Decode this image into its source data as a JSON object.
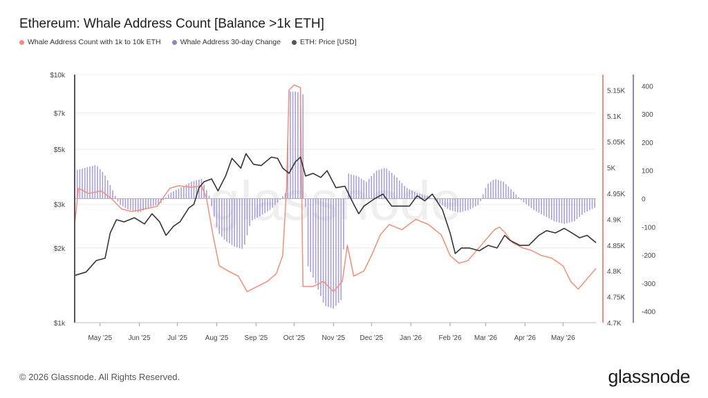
{
  "title": "Ethereum: Whale Address Count [Balance >1k ETH]",
  "legend": [
    {
      "label": "Whale Address Count with 1k to 10k ETH",
      "color": "#f28e7a"
    },
    {
      "label": "Whale Address 30-day Change",
      "color": "#8f85c2"
    },
    {
      "label": "ETH: Price [USD]",
      "color": "#555555"
    }
  ],
  "footer": "© 2026 Glassnode. All Rights Reserved.",
  "logo": "glassnode",
  "watermark": "glassnode",
  "colors": {
    "count": "#f28e7a",
    "change": "#9a8fd0",
    "price": "#333333",
    "count_axis": "#f28e7a",
    "change_axis": "#8f85c2"
  },
  "chart_data": {
    "type": "line",
    "x_ticks": [
      "May '25",
      "Jun '25",
      "Jul '25",
      "Aug '25",
      "Sep '25",
      "Oct '25",
      "Nov '25",
      "Dec '25",
      "Jan '26",
      "Feb '26",
      "Mar '26",
      "Apr '26",
      "May '26"
    ],
    "x_range": [
      "2025-04-11",
      "2026-05-27"
    ],
    "y_left": {
      "label_ticks": [
        "$1k",
        "$2k",
        "$3k",
        "$5k",
        "$7k",
        "$10k"
      ],
      "tick_values": [
        1000,
        2000,
        3000,
        5000,
        7000,
        10000
      ],
      "scale": "log",
      "range": [
        1000,
        10000
      ]
    },
    "y_right_count": {
      "label_ticks": [
        "4.7K",
        "4.75K",
        "4.8K",
        "4.85K",
        "4.9K",
        "4.95K",
        "5K",
        "5.05K",
        "5.1K",
        "5.15K"
      ],
      "tick_values": [
        4700,
        4750,
        4800,
        4850,
        4900,
        4950,
        5000,
        5050,
        5100,
        5150
      ],
      "range": [
        4700,
        5180
      ]
    },
    "y_right_change": {
      "label_ticks": [
        "-400",
        "-300",
        "-200",
        "-100",
        "0",
        "100",
        "200",
        "300",
        "400"
      ],
      "tick_values": [
        -400,
        -300,
        -200,
        -100,
        0,
        100,
        200,
        300,
        400
      ],
      "range": [
        -440,
        440
      ]
    },
    "series": [
      {
        "name": "ETH: Price [USD]",
        "axis": "left",
        "points": [
          [
            "2025-04-11",
            1550
          ],
          [
            "2025-04-20",
            1600
          ],
          [
            "2025-04-28",
            1780
          ],
          [
            "2025-05-05",
            1820
          ],
          [
            "2025-05-09",
            2300
          ],
          [
            "2025-05-14",
            2600
          ],
          [
            "2025-05-20",
            2550
          ],
          [
            "2025-05-28",
            2650
          ],
          [
            "2025-06-05",
            2500
          ],
          [
            "2025-06-11",
            2750
          ],
          [
            "2025-06-17",
            2550
          ],
          [
            "2025-06-22",
            2250
          ],
          [
            "2025-06-28",
            2450
          ],
          [
            "2025-07-03",
            2550
          ],
          [
            "2025-07-10",
            2900
          ],
          [
            "2025-07-14",
            3000
          ],
          [
            "2025-07-18",
            3500
          ],
          [
            "2025-07-22",
            3700
          ],
          [
            "2025-07-28",
            3800
          ],
          [
            "2025-08-02",
            3400
          ],
          [
            "2025-08-08",
            3900
          ],
          [
            "2025-08-13",
            4600
          ],
          [
            "2025-08-20",
            4200
          ],
          [
            "2025-08-24",
            4800
          ],
          [
            "2025-08-30",
            4350
          ],
          [
            "2025-09-05",
            4300
          ],
          [
            "2025-09-13",
            4650
          ],
          [
            "2025-09-18",
            4600
          ],
          [
            "2025-09-22",
            4200
          ],
          [
            "2025-09-27",
            4000
          ],
          [
            "2025-10-02",
            4450
          ],
          [
            "2025-10-06",
            4650
          ],
          [
            "2025-10-10",
            3900
          ],
          [
            "2025-10-16",
            4000
          ],
          [
            "2025-10-22",
            3850
          ],
          [
            "2025-10-27",
            4100
          ],
          [
            "2025-11-03",
            3500
          ],
          [
            "2025-11-10",
            3550
          ],
          [
            "2025-11-17",
            3000
          ],
          [
            "2025-11-21",
            2750
          ],
          [
            "2025-11-25",
            2950
          ],
          [
            "2025-12-03",
            3150
          ],
          [
            "2025-12-10",
            3300
          ],
          [
            "2025-12-17",
            2950
          ],
          [
            "2025-12-24",
            2950
          ],
          [
            "2025-12-31",
            2950
          ],
          [
            "2026-01-06",
            3250
          ],
          [
            "2026-01-12",
            3100
          ],
          [
            "2026-01-18",
            3300
          ],
          [
            "2026-01-26",
            2850
          ],
          [
            "2026-02-01",
            2300
          ],
          [
            "2026-02-05",
            1900
          ],
          [
            "2026-02-10",
            2000
          ],
          [
            "2026-02-16",
            2000
          ],
          [
            "2026-02-24",
            1950
          ],
          [
            "2026-03-03",
            2050
          ],
          [
            "2026-03-10",
            2000
          ],
          [
            "2026-03-16",
            2250
          ],
          [
            "2026-03-20",
            2150
          ],
          [
            "2026-03-28",
            2050
          ],
          [
            "2026-04-04",
            2050
          ],
          [
            "2026-04-12",
            2250
          ],
          [
            "2026-04-18",
            2350
          ],
          [
            "2026-04-25",
            2300
          ],
          [
            "2026-05-02",
            2400
          ],
          [
            "2026-05-08",
            2300
          ],
          [
            "2026-05-14",
            2200
          ],
          [
            "2026-05-20",
            2250
          ],
          [
            "2026-05-27",
            2100
          ]
        ]
      },
      {
        "name": "Whale Address Count with 1k to 10k ETH",
        "axis": "right_count",
        "points": [
          [
            "2025-04-11",
            4890
          ],
          [
            "2025-04-14",
            4960
          ],
          [
            "2025-04-22",
            4950
          ],
          [
            "2025-05-02",
            4955
          ],
          [
            "2025-05-10",
            4940
          ],
          [
            "2025-05-18",
            4920
          ],
          [
            "2025-05-26",
            4915
          ],
          [
            "2025-06-05",
            4920
          ],
          [
            "2025-06-15",
            4925
          ],
          [
            "2025-06-25",
            4960
          ],
          [
            "2025-07-02",
            4965
          ],
          [
            "2025-07-12",
            4962
          ],
          [
            "2025-07-20",
            4965
          ],
          [
            "2025-07-24",
            4940
          ],
          [
            "2025-07-29",
            4870
          ],
          [
            "2025-08-03",
            4810
          ],
          [
            "2025-08-10",
            4800
          ],
          [
            "2025-08-18",
            4790
          ],
          [
            "2025-08-25",
            4760
          ],
          [
            "2025-09-02",
            4770
          ],
          [
            "2025-09-10",
            4780
          ],
          [
            "2025-09-17",
            4795
          ],
          [
            "2025-09-22",
            4830
          ],
          [
            "2025-09-25",
            4960
          ],
          [
            "2025-09-27",
            5150
          ],
          [
            "2025-10-01",
            5160
          ],
          [
            "2025-10-06",
            5155
          ],
          [
            "2025-10-08",
            4770
          ],
          [
            "2025-10-16",
            4770
          ],
          [
            "2025-10-24",
            4780
          ],
          [
            "2025-11-01",
            4760
          ],
          [
            "2025-11-08",
            4780
          ],
          [
            "2025-11-12",
            4850
          ],
          [
            "2025-11-17",
            4790
          ],
          [
            "2025-11-25",
            4800
          ],
          [
            "2025-12-01",
            4830
          ],
          [
            "2025-12-08",
            4870
          ],
          [
            "2025-12-15",
            4890
          ],
          [
            "2025-12-25",
            4880
          ],
          [
            "2026-01-05",
            4900
          ],
          [
            "2026-01-15",
            4890
          ],
          [
            "2026-01-25",
            4870
          ],
          [
            "2026-02-01",
            4830
          ],
          [
            "2026-02-08",
            4815
          ],
          [
            "2026-02-15",
            4820
          ],
          [
            "2026-02-22",
            4840
          ],
          [
            "2026-03-01",
            4860
          ],
          [
            "2026-03-08",
            4880
          ],
          [
            "2026-03-12",
            4885
          ],
          [
            "2026-03-16",
            4875
          ],
          [
            "2026-03-22",
            4855
          ],
          [
            "2026-03-30",
            4845
          ],
          [
            "2026-04-06",
            4840
          ],
          [
            "2026-04-14",
            4830
          ],
          [
            "2026-04-22",
            4825
          ],
          [
            "2026-05-01",
            4810
          ],
          [
            "2026-05-07",
            4780
          ],
          [
            "2026-05-13",
            4765
          ],
          [
            "2026-05-20",
            4785
          ],
          [
            "2026-05-27",
            4805
          ]
        ]
      },
      {
        "name": "Whale Address 30-day Change",
        "axis": "right_change",
        "type": "bar",
        "points": [
          [
            "2025-04-11",
            100
          ],
          [
            "2025-04-20",
            110
          ],
          [
            "2025-04-28",
            120
          ],
          [
            "2025-05-04",
            90
          ],
          [
            "2025-05-10",
            40
          ],
          [
            "2025-05-16",
            -20
          ],
          [
            "2025-05-24",
            -40
          ],
          [
            "2025-06-01",
            -50
          ],
          [
            "2025-06-09",
            -30
          ],
          [
            "2025-06-17",
            -20
          ],
          [
            "2025-06-25",
            20
          ],
          [
            "2025-07-04",
            40
          ],
          [
            "2025-07-12",
            60
          ],
          [
            "2025-07-20",
            70
          ],
          [
            "2025-07-26",
            10
          ],
          [
            "2025-08-02",
            -120
          ],
          [
            "2025-08-08",
            -150
          ],
          [
            "2025-08-15",
            -170
          ],
          [
            "2025-08-22",
            -180
          ],
          [
            "2025-08-28",
            -80
          ],
          [
            "2025-09-05",
            -60
          ],
          [
            "2025-09-12",
            -40
          ],
          [
            "2025-09-19",
            -10
          ],
          [
            "2025-09-24",
            20
          ],
          [
            "2025-09-28",
            380
          ],
          [
            "2025-10-03",
            380
          ],
          [
            "2025-10-08",
            370
          ],
          [
            "2025-10-11",
            -230
          ],
          [
            "2025-10-18",
            -300
          ],
          [
            "2025-10-25",
            -380
          ],
          [
            "2025-11-01",
            -390
          ],
          [
            "2025-11-07",
            -360
          ],
          [
            "2025-11-12",
            90
          ],
          [
            "2025-11-20",
            80
          ],
          [
            "2025-11-27",
            60
          ],
          [
            "2025-12-05",
            100
          ],
          [
            "2025-12-12",
            110
          ],
          [
            "2025-12-20",
            80
          ],
          [
            "2025-12-28",
            40
          ],
          [
            "2026-01-06",
            20
          ],
          [
            "2026-01-14",
            10
          ],
          [
            "2026-01-22",
            -10
          ],
          [
            "2026-01-31",
            -40
          ],
          [
            "2026-02-08",
            -50
          ],
          [
            "2026-02-16",
            -40
          ],
          [
            "2026-02-24",
            -20
          ],
          [
            "2026-03-02",
            50
          ],
          [
            "2026-03-08",
            70
          ],
          [
            "2026-03-15",
            60
          ],
          [
            "2026-03-22",
            30
          ],
          [
            "2026-03-30",
            -10
          ],
          [
            "2026-04-08",
            -40
          ],
          [
            "2026-04-16",
            -60
          ],
          [
            "2026-04-24",
            -80
          ],
          [
            "2026-05-02",
            -90
          ],
          [
            "2026-05-10",
            -80
          ],
          [
            "2026-05-18",
            -50
          ],
          [
            "2026-05-27",
            -30
          ]
        ]
      }
    ]
  }
}
